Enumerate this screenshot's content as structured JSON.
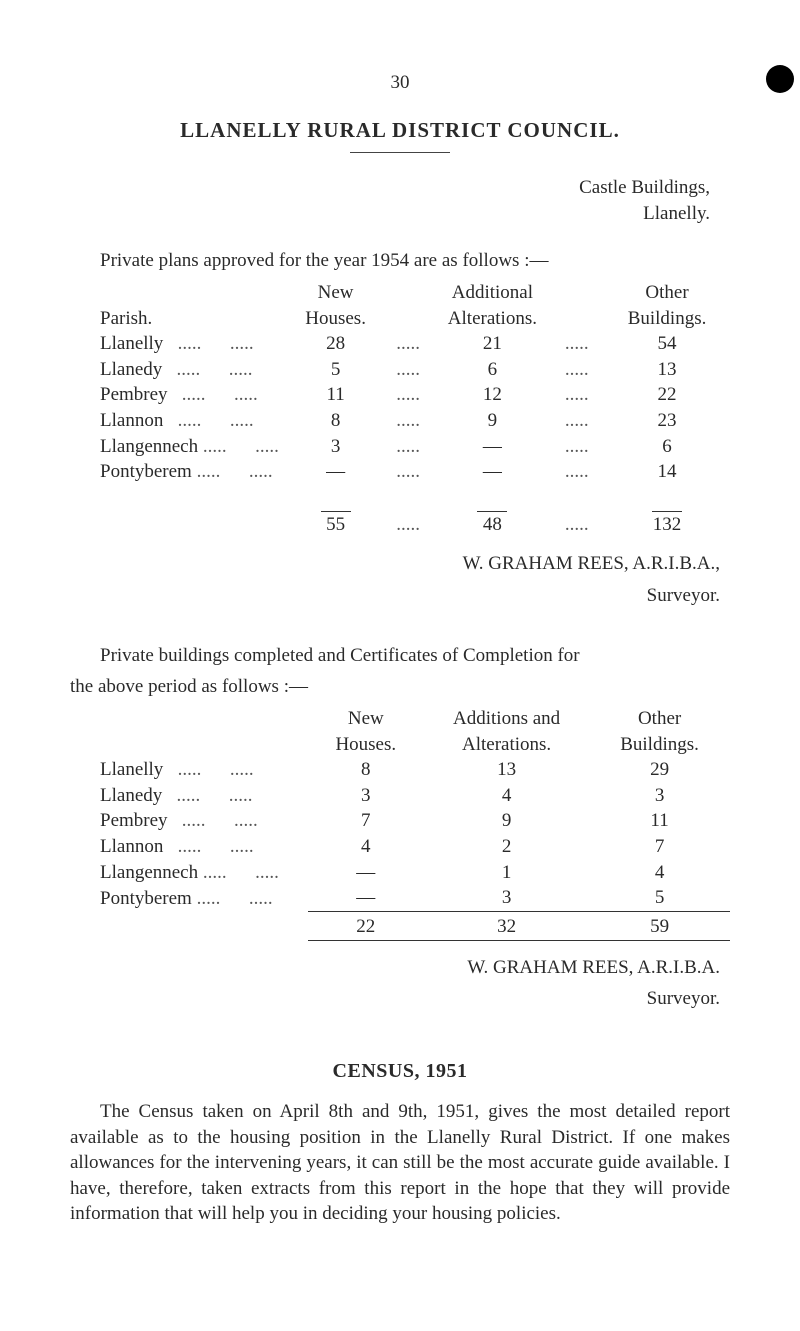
{
  "page_number": "30",
  "title": "LLANELLY RURAL DISTRICT COUNCIL.",
  "address": {
    "line1": "Castle Buildings,",
    "line2": "Llanelly."
  },
  "intro1": "Private plans approved for the year 1954 are as follows :—",
  "table1": {
    "headers": {
      "parish": "Parish.",
      "new1": "New",
      "new2": "Houses.",
      "alt1": "Additional",
      "alt2": "Alterations.",
      "oth1": "Other",
      "oth2": "Buildings."
    },
    "rows": [
      {
        "parish": "Llanelly",
        "dp": ".....",
        "new": "28",
        "d1": ".....",
        "alt": "21",
        "d2": ".....",
        "oth": "54"
      },
      {
        "parish": "Llanedy",
        "dp": ".....",
        "new": "5",
        "d1": ".....",
        "alt": "6",
        "d2": ".....",
        "oth": "13"
      },
      {
        "parish": "Pembrey",
        "dp": ".....",
        "new": "11",
        "d1": ".....",
        "alt": "12",
        "d2": ".....",
        "oth": "22"
      },
      {
        "parish": "Llannon",
        "dp": ".....",
        "new": "8",
        "d1": ".....",
        "alt": "9",
        "d2": ".....",
        "oth": "23"
      },
      {
        "parish": "Llangennech",
        "dp": ".....",
        "new": "3",
        "d1": ".....",
        "alt": "—",
        "d2": ".....",
        "oth": "6"
      },
      {
        "parish": "Pontyberem",
        "dp": ".....",
        "new": "—",
        "d1": ".....",
        "alt": "—",
        "d2": ".....",
        "oth": "14"
      }
    ],
    "totals": {
      "new": "55",
      "d1": ".....",
      "alt": "48",
      "d2": ".....",
      "oth": "132"
    }
  },
  "sig1": {
    "name": "W. GRAHAM REES, A.R.I.B.A.,",
    "role": "Surveyor."
  },
  "intro2a": "Private buildings completed and Certificates of Completion for",
  "intro2b": "the above period as follows :—",
  "table2": {
    "headers": {
      "new1": "New",
      "new2": "Houses.",
      "alt1": "Additions and",
      "alt2": "Alterations.",
      "oth1": "Other",
      "oth2": "Buildings."
    },
    "rows": [
      {
        "parish": "Llanelly",
        "dp": ".....",
        "new": "8",
        "alt": "13",
        "oth": "29"
      },
      {
        "parish": "Llanedy",
        "dp": ".....",
        "new": "3",
        "alt": "4",
        "oth": "3"
      },
      {
        "parish": "Pembrey",
        "dp": ".....",
        "new": "7",
        "alt": "9",
        "oth": "11"
      },
      {
        "parish": "Llannon",
        "dp": ".....",
        "new": "4",
        "alt": "2",
        "oth": "7"
      },
      {
        "parish": "Llangennech",
        "dp": ".....",
        "new": "—",
        "alt": "1",
        "oth": "4"
      },
      {
        "parish": "Pontyberem",
        "dp": ".....",
        "new": "—",
        "alt": "3",
        "oth": "5"
      }
    ],
    "totals": {
      "new": "22",
      "alt": "32",
      "oth": "59"
    }
  },
  "sig2": {
    "name": "W. GRAHAM REES, A.R.I.B.A.",
    "role": "Surveyor."
  },
  "census": {
    "title": "CENSUS, 1951",
    "para": "The Census taken on April 8th and 9th, 1951, gives the most detailed report available as to the housing position in the Llanelly Rural District. If one makes allowances for the intervening years, it can still be the most accurate guide available. I have, therefore, taken extracts from this report in the hope that they will provide information that will help you in deciding your housing policies."
  },
  "dots_small": ".....",
  "dots_long": "....."
}
